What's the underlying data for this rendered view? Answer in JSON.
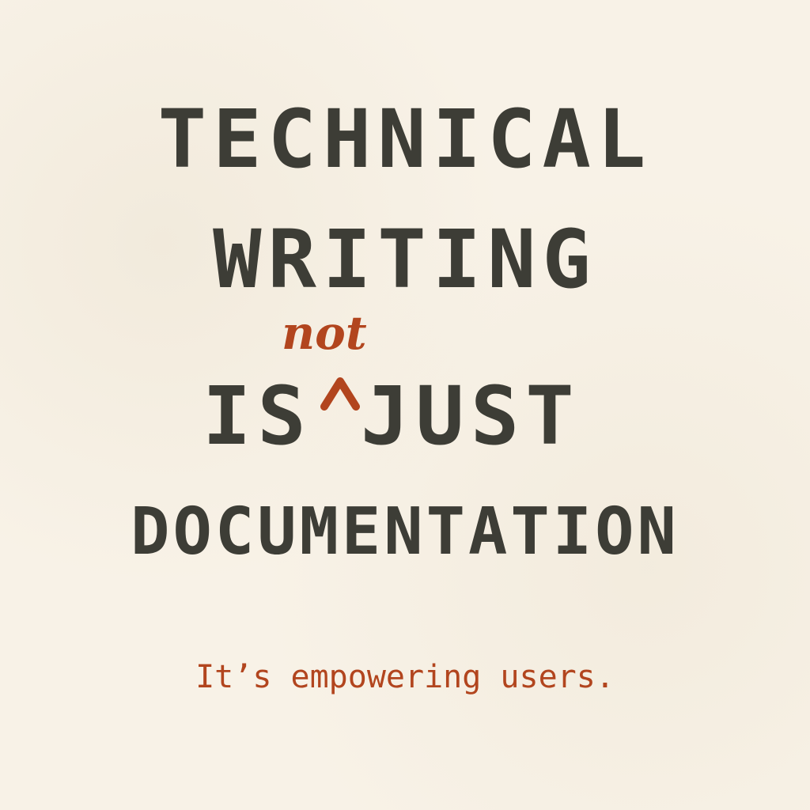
{
  "headline": {
    "line1": "TECHNICAL",
    "line2": "WRITING",
    "line3_start": "IS",
    "line3_insert": "not",
    "line3_end": "JUST",
    "line4": "DOCUMENTATION"
  },
  "tagline": "It’s empowering users.",
  "colors": {
    "background": "#f8f2e7",
    "headline_text": "#3d3d36",
    "accent": "#b2451e"
  },
  "icons": {
    "caret": "caret-insertion-mark"
  }
}
